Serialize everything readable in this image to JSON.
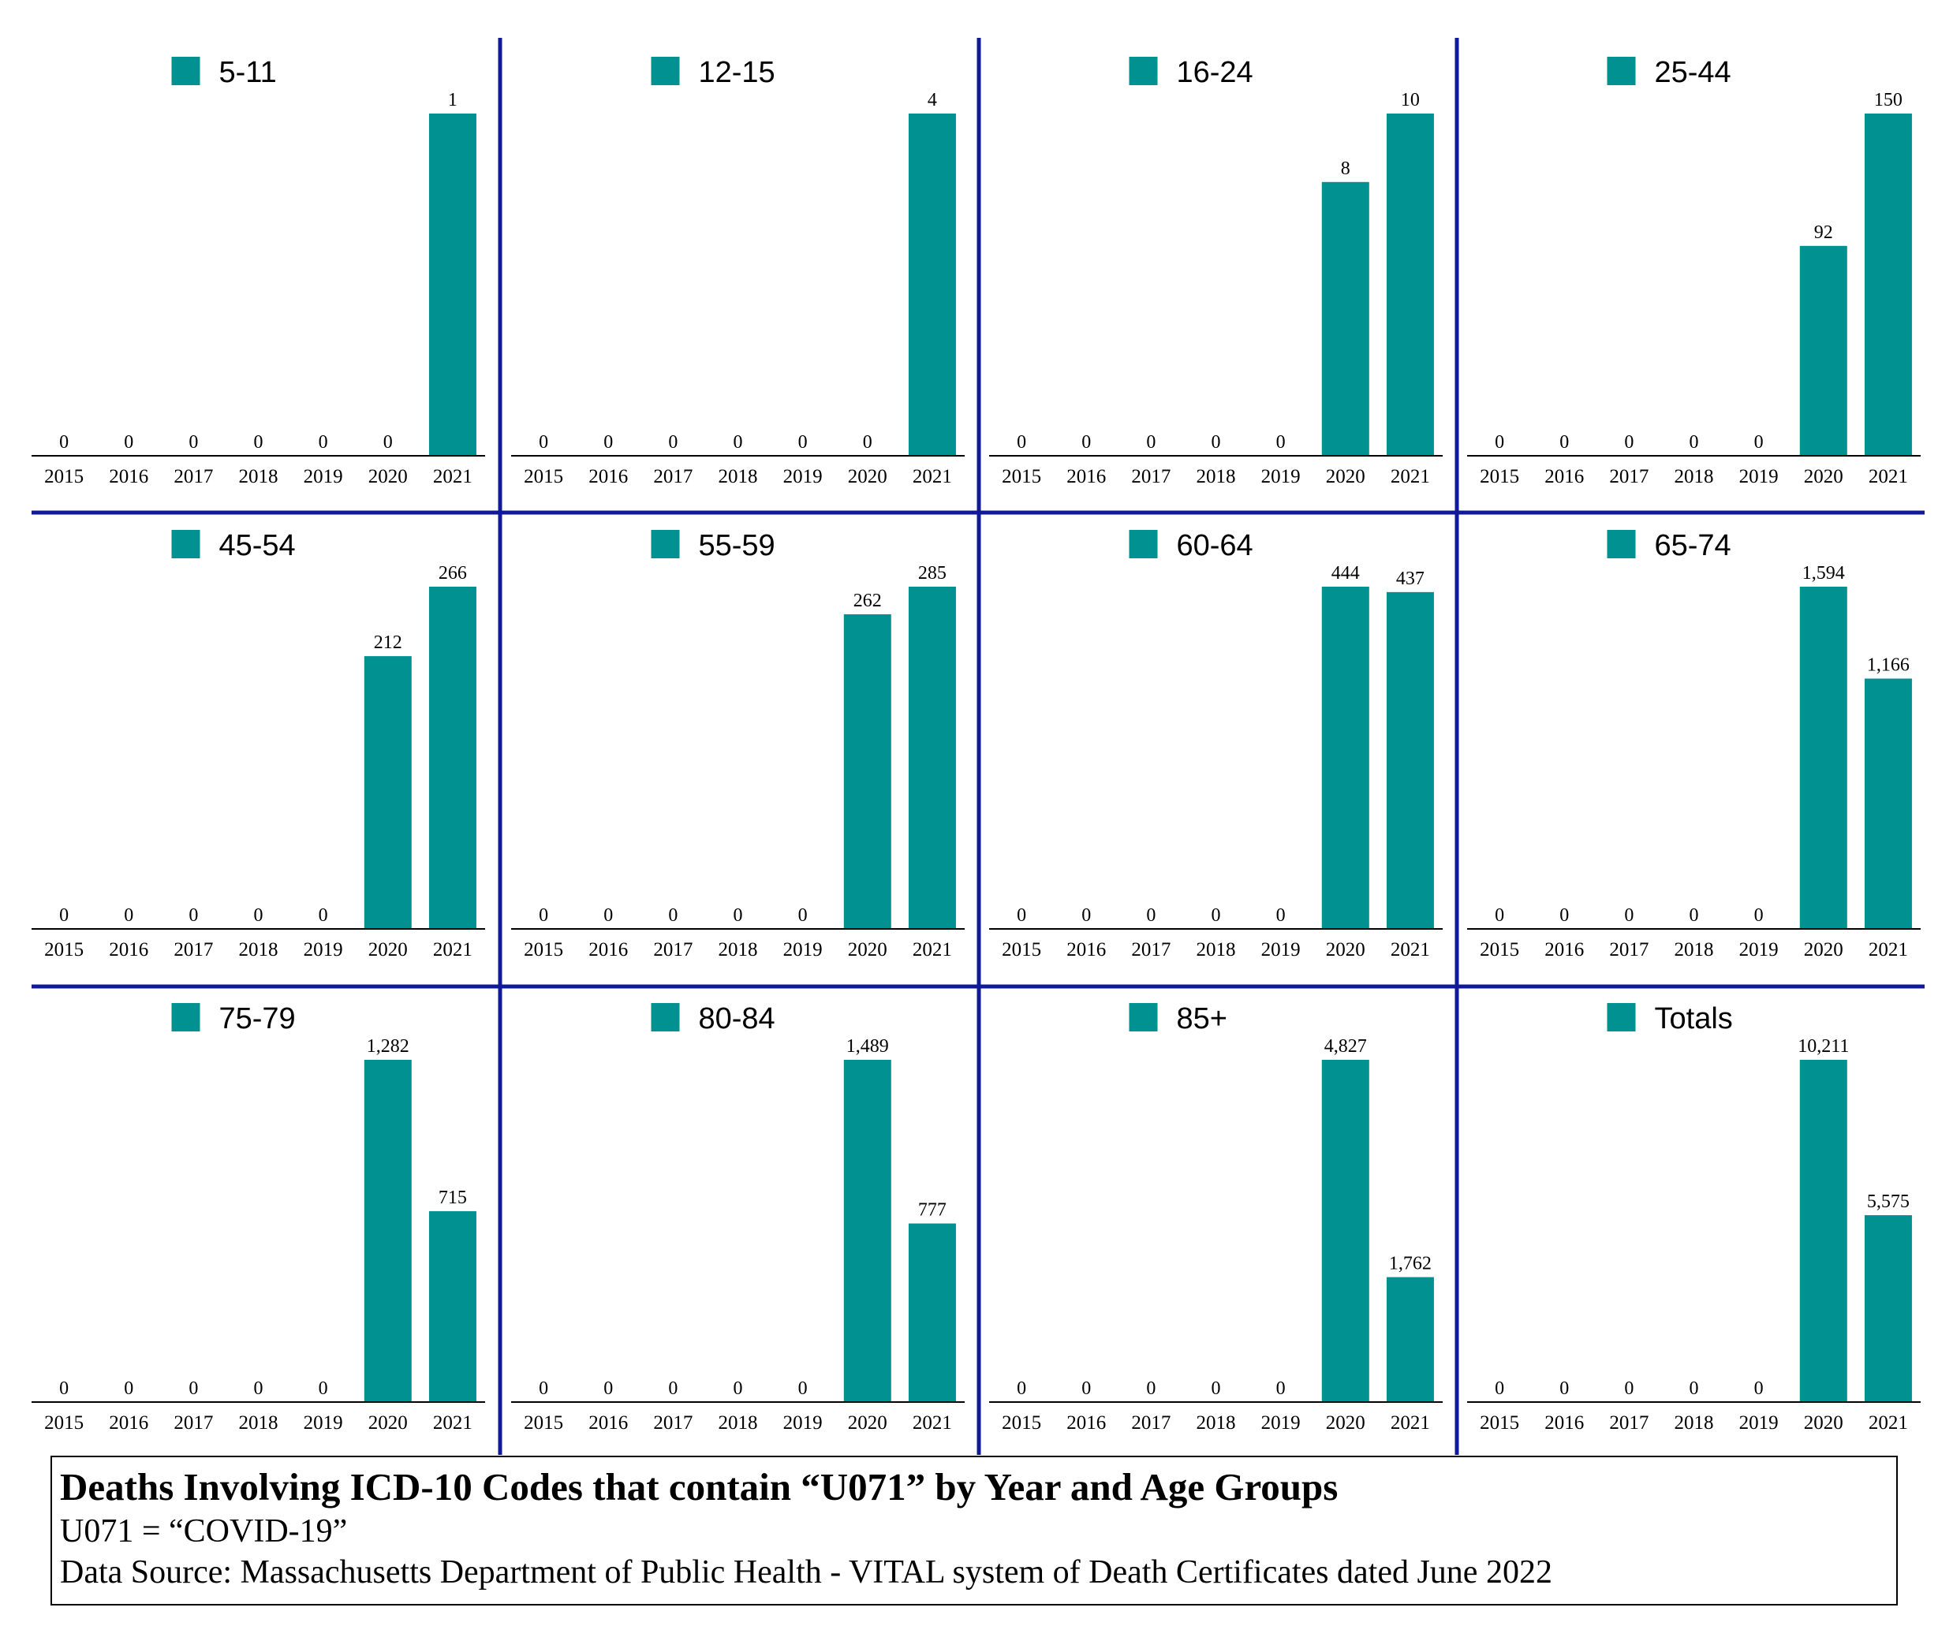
{
  "colors": {
    "bar": "#009190",
    "divider": "#101a96",
    "axis": "#000000"
  },
  "caption": {
    "title": "Deaths Involving ICD-10 Codes that contain “U071” by Year and Age Groups",
    "line1": "U071 = “COVID-19”",
    "line2": "Data Source:  Massachusetts Department of Public Health - VITAL system of Death Certificates dated June 2022"
  },
  "chart_data": [
    {
      "type": "bar",
      "legend": "5-11",
      "categories": [
        "2015",
        "2016",
        "2017",
        "2018",
        "2019",
        "2020",
        "2021"
      ],
      "values": [
        0,
        0,
        0,
        0,
        0,
        0,
        1
      ],
      "labels": [
        "0",
        "0",
        "0",
        "0",
        "0",
        "0",
        "1"
      ]
    },
    {
      "type": "bar",
      "legend": "12-15",
      "categories": [
        "2015",
        "2016",
        "2017",
        "2018",
        "2019",
        "2020",
        "2021"
      ],
      "values": [
        0,
        0,
        0,
        0,
        0,
        0,
        4
      ],
      "labels": [
        "0",
        "0",
        "0",
        "0",
        "0",
        "0",
        "4"
      ]
    },
    {
      "type": "bar",
      "legend": "16-24",
      "categories": [
        "2015",
        "2016",
        "2017",
        "2018",
        "2019",
        "2020",
        "2021"
      ],
      "values": [
        0,
        0,
        0,
        0,
        0,
        8,
        10
      ],
      "labels": [
        "0",
        "0",
        "0",
        "0",
        "0",
        "8",
        "10"
      ]
    },
    {
      "type": "bar",
      "legend": "25-44",
      "categories": [
        "2015",
        "2016",
        "2017",
        "2018",
        "2019",
        "2020",
        "2021"
      ],
      "values": [
        0,
        0,
        0,
        0,
        0,
        92,
        150
      ],
      "labels": [
        "0",
        "0",
        "0",
        "0",
        "0",
        "92",
        "150"
      ]
    },
    {
      "type": "bar",
      "legend": "45-54",
      "categories": [
        "2015",
        "2016",
        "2017",
        "2018",
        "2019",
        "2020",
        "2021"
      ],
      "values": [
        0,
        0,
        0,
        0,
        0,
        212,
        266
      ],
      "labels": [
        "0",
        "0",
        "0",
        "0",
        "0",
        "212",
        "266"
      ]
    },
    {
      "type": "bar",
      "legend": "55-59",
      "categories": [
        "2015",
        "2016",
        "2017",
        "2018",
        "2019",
        "2020",
        "2021"
      ],
      "values": [
        0,
        0,
        0,
        0,
        0,
        262,
        285
      ],
      "labels": [
        "0",
        "0",
        "0",
        "0",
        "0",
        "262",
        "285"
      ]
    },
    {
      "type": "bar",
      "legend": "60-64",
      "categories": [
        "2015",
        "2016",
        "2017",
        "2018",
        "2019",
        "2020",
        "2021"
      ],
      "values": [
        0,
        0,
        0,
        0,
        0,
        444,
        437
      ],
      "labels": [
        "0",
        "0",
        "0",
        "0",
        "0",
        "444",
        "437"
      ]
    },
    {
      "type": "bar",
      "legend": "65-74",
      "categories": [
        "2015",
        "2016",
        "2017",
        "2018",
        "2019",
        "2020",
        "2021"
      ],
      "values": [
        0,
        0,
        0,
        0,
        0,
        1594,
        1166
      ],
      "labels": [
        "0",
        "0",
        "0",
        "0",
        "0",
        "1,594",
        "1,166"
      ]
    },
    {
      "type": "bar",
      "legend": "75-79",
      "categories": [
        "2015",
        "2016",
        "2017",
        "2018",
        "2019",
        "2020",
        "2021"
      ],
      "values": [
        0,
        0,
        0,
        0,
        0,
        1282,
        715
      ],
      "labels": [
        "0",
        "0",
        "0",
        "0",
        "0",
        "1,282",
        "715"
      ]
    },
    {
      "type": "bar",
      "legend": "80-84",
      "categories": [
        "2015",
        "2016",
        "2017",
        "2018",
        "2019",
        "2020",
        "2021"
      ],
      "values": [
        0,
        0,
        0,
        0,
        0,
        1489,
        777
      ],
      "labels": [
        "0",
        "0",
        "0",
        "0",
        "0",
        "1,489",
        "777"
      ]
    },
    {
      "type": "bar",
      "legend": "85+",
      "categories": [
        "2015",
        "2016",
        "2017",
        "2018",
        "2019",
        "2020",
        "2021"
      ],
      "values": [
        0,
        0,
        0,
        0,
        0,
        4827,
        1762
      ],
      "labels": [
        "0",
        "0",
        "0",
        "0",
        "0",
        "4,827",
        "1,762"
      ]
    },
    {
      "type": "bar",
      "legend": "Totals",
      "categories": [
        "2015",
        "2016",
        "2017",
        "2018",
        "2019",
        "2020",
        "2021"
      ],
      "values": [
        0,
        0,
        0,
        0,
        0,
        10211,
        5575
      ],
      "labels": [
        "0",
        "0",
        "0",
        "0",
        "0",
        "10,211",
        "5,575"
      ]
    }
  ]
}
